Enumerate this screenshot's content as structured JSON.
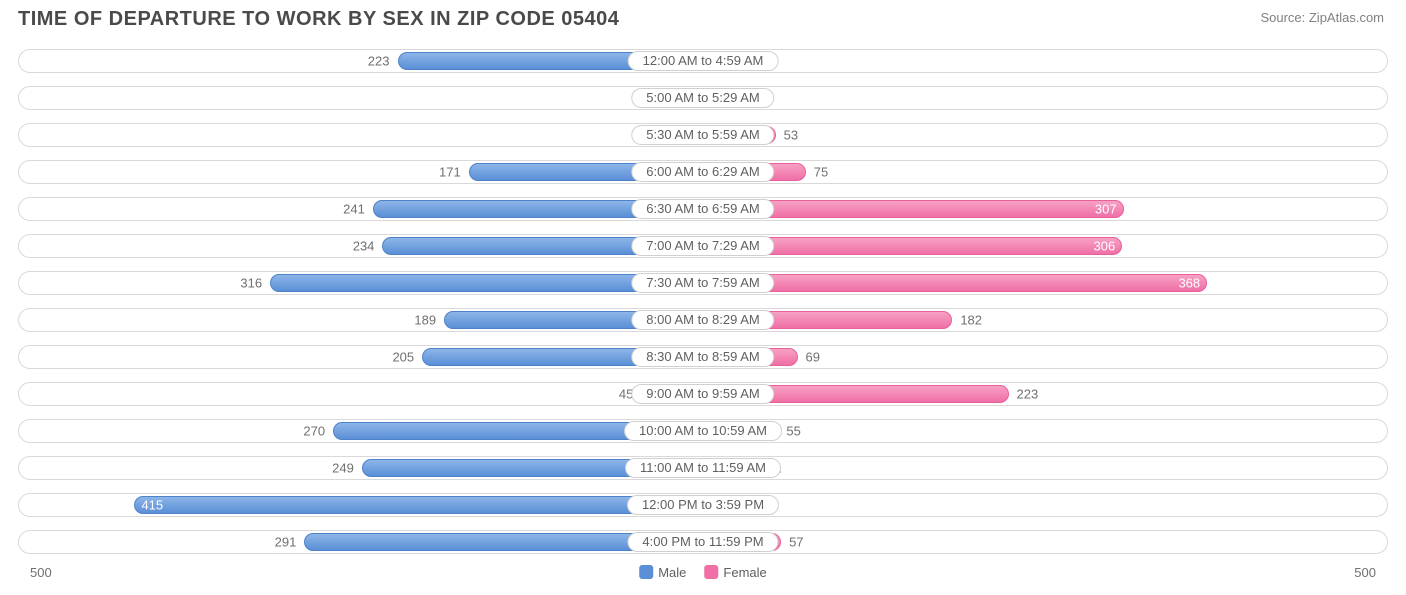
{
  "title": "TIME OF DEPARTURE TO WORK BY SEX IN ZIP CODE 05404",
  "source": "Source: ZipAtlas.com",
  "chart": {
    "type": "diverging-bar",
    "axis_max": 500,
    "axis_label_left": "500",
    "axis_label_right": "500",
    "left_label_inside_threshold": 350,
    "right_label_inside_threshold": 280,
    "colors": {
      "male_fill_top": "#8db5e8",
      "male_fill_bottom": "#5a8fd6",
      "male_border": "#4e82ca",
      "female_fill_top": "#f7a1c4",
      "female_fill_bottom": "#ef6fa6",
      "female_border": "#e85f99",
      "track_border": "#d9d9d9",
      "background": "#ffffff",
      "text": "#707070",
      "text_inside": "#ffffff"
    },
    "legend": {
      "male": "Male",
      "female": "Female"
    },
    "rows": [
      {
        "category": "12:00 AM to 4:59 AM",
        "male": 223,
        "female": 19
      },
      {
        "category": "5:00 AM to 5:29 AM",
        "male": 21,
        "female": 16
      },
      {
        "category": "5:30 AM to 5:59 AM",
        "male": 26,
        "female": 53
      },
      {
        "category": "6:00 AM to 6:29 AM",
        "male": 171,
        "female": 75
      },
      {
        "category": "6:30 AM to 6:59 AM",
        "male": 241,
        "female": 307
      },
      {
        "category": "7:00 AM to 7:29 AM",
        "male": 234,
        "female": 306
      },
      {
        "category": "7:30 AM to 7:59 AM",
        "male": 316,
        "female": 368
      },
      {
        "category": "8:00 AM to 8:29 AM",
        "male": 189,
        "female": 182
      },
      {
        "category": "8:30 AM to 8:59 AM",
        "male": 205,
        "female": 69
      },
      {
        "category": "9:00 AM to 9:59 AM",
        "male": 45,
        "female": 223
      },
      {
        "category": "10:00 AM to 10:59 AM",
        "male": 270,
        "female": 55
      },
      {
        "category": "11:00 AM to 11:59 AM",
        "male": 249,
        "female": 41
      },
      {
        "category": "12:00 PM to 3:59 PM",
        "male": 415,
        "female": 34
      },
      {
        "category": "4:00 PM to 11:59 PM",
        "male": 291,
        "female": 57
      }
    ]
  }
}
